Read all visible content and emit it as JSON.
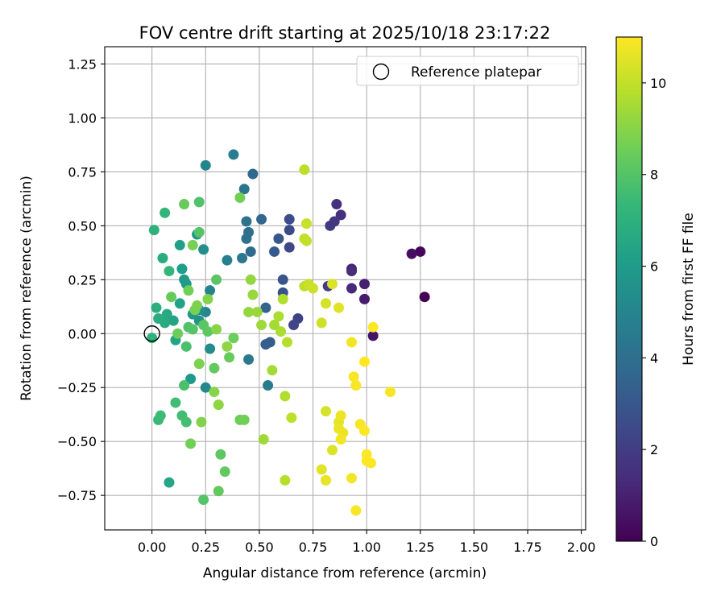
{
  "chart_data": {
    "type": "scatter",
    "title": "FOV centre drift starting at 2025/10/18 23:17:22",
    "xlabel": "Angular distance from reference (arcmin)",
    "ylabel": "Rotation from reference (arcmin)",
    "xlim": [
      -0.22,
      2.02
    ],
    "ylim": [
      -0.91,
      1.33
    ],
    "x_ticks": [
      0.0,
      0.25,
      0.5,
      0.75,
      1.0,
      1.25,
      1.5,
      1.75,
      2.0
    ],
    "x_tick_labels": [
      "0.00",
      "0.25",
      "0.50",
      "0.75",
      "1.00",
      "1.25",
      "1.50",
      "1.75",
      "2.00"
    ],
    "y_ticks": [
      -0.75,
      -0.5,
      -0.25,
      0.0,
      0.25,
      0.5,
      0.75,
      1.0,
      1.25
    ],
    "y_tick_labels": [
      "−0.75",
      "−0.50",
      "−0.25",
      "0.00",
      "0.25",
      "0.50",
      "0.75",
      "1.00",
      "1.25"
    ],
    "grid": true,
    "legend": {
      "position": "top-right",
      "entries": [
        "Reference platepar"
      ]
    },
    "reference_point": {
      "x": 0.0,
      "y": 0.0,
      "label": "Reference platepar"
    },
    "colorbar": {
      "label": "Hours from first FF file",
      "range": [
        0,
        11
      ],
      "ticks": [
        0,
        2,
        4,
        6,
        8,
        10
      ],
      "tick_labels": [
        "0",
        "2",
        "4",
        "6",
        "8",
        "10"
      ],
      "colormap": "viridis",
      "colormap_stops": [
        "#440154",
        "#482878",
        "#3e4989",
        "#31688e",
        "#26828e",
        "#1f9e89",
        "#35b779",
        "#6ece58",
        "#b5de2b",
        "#fde725"
      ]
    },
    "series": [
      {
        "name": "FOV centre",
        "points": [
          [
            1.27,
            0.17,
            0.0
          ],
          [
            1.25,
            0.38,
            0.2
          ],
          [
            1.21,
            0.37,
            0.4
          ],
          [
            1.03,
            -0.01,
            0.6
          ],
          [
            0.99,
            0.16,
            0.8
          ],
          [
            0.99,
            0.23,
            1.0
          ],
          [
            0.93,
            0.3,
            1.1
          ],
          [
            0.93,
            0.21,
            1.3
          ],
          [
            0.93,
            0.29,
            1.4
          ],
          [
            0.88,
            0.55,
            1.5
          ],
          [
            0.86,
            0.6,
            1.6
          ],
          [
            0.85,
            0.52,
            1.8
          ],
          [
            0.83,
            0.5,
            1.9
          ],
          [
            0.82,
            0.22,
            2.0
          ],
          [
            0.68,
            0.07,
            2.2
          ],
          [
            0.66,
            0.04,
            2.3
          ],
          [
            0.64,
            0.4,
            2.4
          ],
          [
            0.64,
            0.48,
            2.5
          ],
          [
            0.64,
            0.53,
            2.6
          ],
          [
            0.61,
            0.19,
            2.8
          ],
          [
            0.61,
            0.25,
            2.9
          ],
          [
            0.59,
            0.44,
            3.0
          ],
          [
            0.57,
            0.38,
            3.1
          ],
          [
            0.55,
            -0.04,
            3.2
          ],
          [
            0.53,
            -0.05,
            3.3
          ],
          [
            0.53,
            0.12,
            3.5
          ],
          [
            0.51,
            0.53,
            3.6
          ],
          [
            0.47,
            0.74,
            3.7
          ],
          [
            0.46,
            0.38,
            3.8
          ],
          [
            0.45,
            0.47,
            4.0
          ],
          [
            0.44,
            0.44,
            4.1
          ],
          [
            0.44,
            0.52,
            4.2
          ],
          [
            0.43,
            0.67,
            4.3
          ],
          [
            0.42,
            0.35,
            4.4
          ],
          [
            0.45,
            -0.12,
            4.5
          ],
          [
            0.54,
            -0.24,
            4.6
          ],
          [
            0.38,
            0.83,
            4.7
          ],
          [
            0.35,
            0.34,
            4.8
          ],
          [
            0.27,
            0.2,
            4.9
          ],
          [
            0.25,
            0.78,
            5.0
          ],
          [
            0.25,
            0.1,
            5.1
          ],
          [
            0.25,
            -0.25,
            5.2
          ],
          [
            0.27,
            -0.07,
            5.3
          ],
          [
            0.24,
            0.39,
            5.4
          ],
          [
            0.22,
            0.11,
            5.5
          ],
          [
            0.22,
            0.06,
            5.6
          ],
          [
            0.21,
            0.46,
            5.7
          ],
          [
            0.19,
            0.09,
            5.8
          ],
          [
            0.18,
            -0.21,
            5.9
          ],
          [
            0.16,
            0.23,
            6.0
          ],
          [
            0.15,
            0.25,
            6.0
          ],
          [
            0.14,
            0.3,
            6.1
          ],
          [
            0.13,
            0.41,
            6.2
          ],
          [
            0.13,
            0.14,
            6.3
          ],
          [
            0.11,
            -0.03,
            6.4
          ],
          [
            0.1,
            0.06,
            6.4
          ],
          [
            0.08,
            -0.69,
            6.5
          ],
          [
            0.07,
            0.09,
            6.6
          ],
          [
            0.06,
            0.05,
            6.7
          ],
          [
            0.05,
            0.35,
            6.8
          ],
          [
            0.03,
            0.07,
            6.8
          ],
          [
            0.02,
            0.12,
            6.9
          ],
          [
            0.01,
            0.48,
            7.0
          ],
          [
            0.0,
            -0.02,
            7.1
          ],
          [
            0.06,
            0.56,
            7.2
          ],
          [
            0.08,
            0.29,
            7.3
          ],
          [
            0.03,
            -0.4,
            7.4
          ],
          [
            0.04,
            -0.38,
            7.5
          ],
          [
            0.11,
            -0.32,
            7.6
          ],
          [
            0.14,
            -0.38,
            7.6
          ],
          [
            0.16,
            -0.41,
            7.7
          ],
          [
            0.16,
            -0.06,
            7.8
          ],
          [
            0.17,
            0.03,
            7.9
          ],
          [
            0.19,
            0.02,
            8.0
          ],
          [
            0.15,
            -0.24,
            7.8
          ],
          [
            0.22,
            0.61,
            7.9
          ],
          [
            0.22,
            0.47,
            8.0
          ],
          [
            0.24,
            -0.77,
            8.0
          ],
          [
            0.24,
            0.04,
            8.1
          ],
          [
            0.26,
            0.01,
            8.2
          ],
          [
            0.29,
            -0.16,
            8.3
          ],
          [
            0.3,
            0.25,
            8.1
          ],
          [
            0.32,
            -0.56,
            8.2
          ],
          [
            0.31,
            -0.73,
            8.3
          ],
          [
            0.34,
            -0.64,
            8.3
          ],
          [
            0.36,
            -0.11,
            8.4
          ],
          [
            0.38,
            -0.02,
            8.5
          ],
          [
            0.41,
            -0.4,
            8.5
          ],
          [
            0.41,
            0.63,
            8.6
          ],
          [
            0.43,
            -0.4,
            8.6
          ],
          [
            0.09,
            0.17,
            8.4
          ],
          [
            0.12,
            0.0,
            8.5
          ],
          [
            0.15,
            0.6,
            8.4
          ],
          [
            0.17,
            0.2,
            8.6
          ],
          [
            0.18,
            -0.51,
            8.6
          ],
          [
            0.19,
            0.41,
            8.7
          ],
          [
            0.2,
            0.11,
            8.7
          ],
          [
            0.21,
            0.13,
            8.8
          ],
          [
            0.22,
            -0.14,
            8.8
          ],
          [
            0.23,
            -0.41,
            8.9
          ],
          [
            0.26,
            0.16,
            8.9
          ],
          [
            0.29,
            -0.27,
            9.0
          ],
          [
            0.3,
            0.02,
            9.0
          ],
          [
            0.31,
            -0.33,
            9.1
          ],
          [
            0.35,
            -0.06,
            9.1
          ],
          [
            0.45,
            0.1,
            9.2
          ],
          [
            0.46,
            0.25,
            9.2
          ],
          [
            0.47,
            0.18,
            9.3
          ],
          [
            0.49,
            0.1,
            9.3
          ],
          [
            0.51,
            0.04,
            9.4
          ],
          [
            0.52,
            -0.49,
            9.4
          ],
          [
            0.56,
            -0.17,
            9.5
          ],
          [
            0.57,
            0.04,
            9.5
          ],
          [
            0.59,
            0.08,
            9.6
          ],
          [
            0.6,
            0.01,
            9.6
          ],
          [
            0.61,
            0.16,
            9.7
          ],
          [
            0.62,
            -0.29,
            9.7
          ],
          [
            0.62,
            -0.68,
            9.8
          ],
          [
            0.63,
            -0.04,
            9.8
          ],
          [
            0.65,
            -0.39,
            9.9
          ],
          [
            0.71,
            0.22,
            9.9
          ],
          [
            0.71,
            0.44,
            10.0
          ],
          [
            0.72,
            0.43,
            10.0
          ],
          [
            0.73,
            0.23,
            10.1
          ],
          [
            0.72,
            0.51,
            10.1
          ],
          [
            0.75,
            0.21,
            10.2
          ],
          [
            0.79,
            0.05,
            10.2
          ],
          [
            0.81,
            -0.36,
            10.3
          ],
          [
            0.81,
            0.14,
            10.3
          ],
          [
            0.84,
            -0.54,
            10.4
          ],
          [
            0.84,
            0.23,
            10.4
          ],
          [
            0.87,
            0.12,
            10.5
          ],
          [
            0.71,
            0.76,
            9.9
          ],
          [
            0.79,
            -0.63,
            10.5
          ],
          [
            0.81,
            -0.68,
            10.6
          ],
          [
            0.87,
            -0.41,
            10.6
          ],
          [
            0.87,
            -0.44,
            10.7
          ],
          [
            0.88,
            -0.38,
            10.7
          ],
          [
            0.89,
            -0.46,
            10.7
          ],
          [
            0.88,
            -0.49,
            10.8
          ],
          [
            0.93,
            -0.04,
            10.8
          ],
          [
            0.93,
            -0.67,
            10.8
          ],
          [
            0.94,
            -0.2,
            10.9
          ],
          [
            0.95,
            -0.24,
            10.9
          ],
          [
            0.95,
            -0.82,
            10.9
          ],
          [
            0.97,
            -0.42,
            10.9
          ],
          [
            0.99,
            -0.13,
            11.0
          ],
          [
            0.99,
            -0.45,
            11.0
          ],
          [
            1.0,
            -0.56,
            11.0
          ],
          [
            1.0,
            -0.59,
            11.0
          ],
          [
            1.02,
            -0.6,
            11.0
          ],
          [
            1.03,
            0.03,
            11.0
          ],
          [
            1.11,
            -0.27,
            10.9
          ]
        ]
      }
    ]
  }
}
